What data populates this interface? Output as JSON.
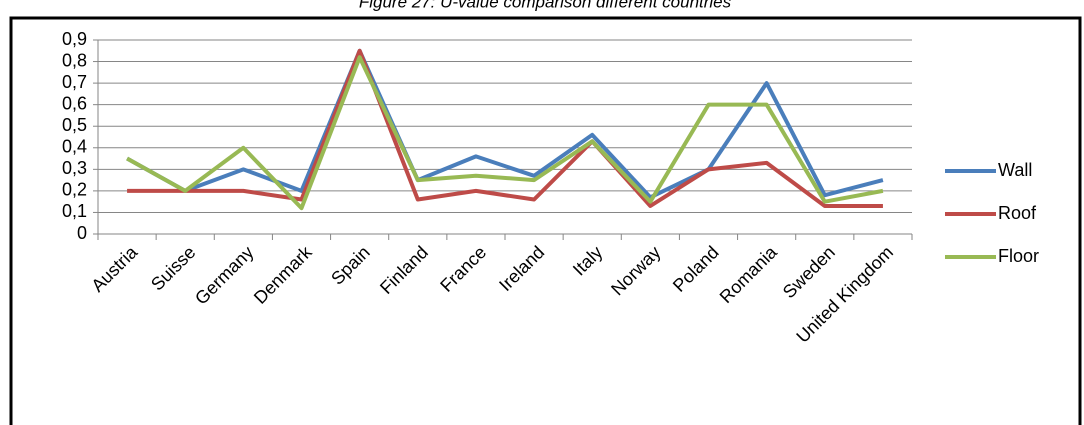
{
  "chart_data": {
    "type": "line",
    "title": "Figure 27: U-value comparison different countries",
    "categories": [
      "Austria",
      "Suisse",
      "Germany",
      "Denmark",
      "Spain",
      "Finland",
      "France",
      "Ireland",
      "Italy",
      "Norway",
      "Poland",
      "Romania",
      "Sweden",
      "United Kingdom"
    ],
    "series": [
      {
        "name": "Wall",
        "color": "#4a7ebb",
        "values": [
          0.35,
          0.2,
          0.3,
          0.2,
          0.85,
          0.25,
          0.36,
          0.27,
          0.46,
          0.17,
          0.3,
          0.7,
          0.18,
          0.25
        ]
      },
      {
        "name": "Roof",
        "color": "#be4b48",
        "values": [
          0.2,
          0.2,
          0.2,
          0.16,
          0.85,
          0.16,
          0.2,
          0.16,
          0.43,
          0.13,
          0.3,
          0.33,
          0.13,
          0.13
        ]
      },
      {
        "name": "Floor",
        "color": "#98b954",
        "values": [
          0.35,
          0.2,
          0.4,
          0.12,
          0.82,
          0.25,
          0.27,
          0.25,
          0.43,
          0.15,
          0.6,
          0.6,
          0.15,
          0.2
        ]
      }
    ],
    "ylim": [
      0,
      0.9
    ],
    "yticks": [
      0,
      {
        "value": 0.1,
        "label": "0,1"
      },
      {
        "value": 0.2,
        "label": "0,2"
      },
      {
        "value": 0.3,
        "label": "0,3"
      },
      {
        "value": 0.4,
        "label": "0,4"
      },
      {
        "value": 0.5,
        "label": "0,5"
      },
      {
        "value": 0.6,
        "label": "0,6"
      },
      {
        "value": 0.7,
        "label": "0,7"
      },
      {
        "value": 0.8,
        "label": "0,8"
      },
      {
        "value": 0.9,
        "label": "0,9"
      }
    ],
    "grid": true,
    "legend": "right"
  }
}
